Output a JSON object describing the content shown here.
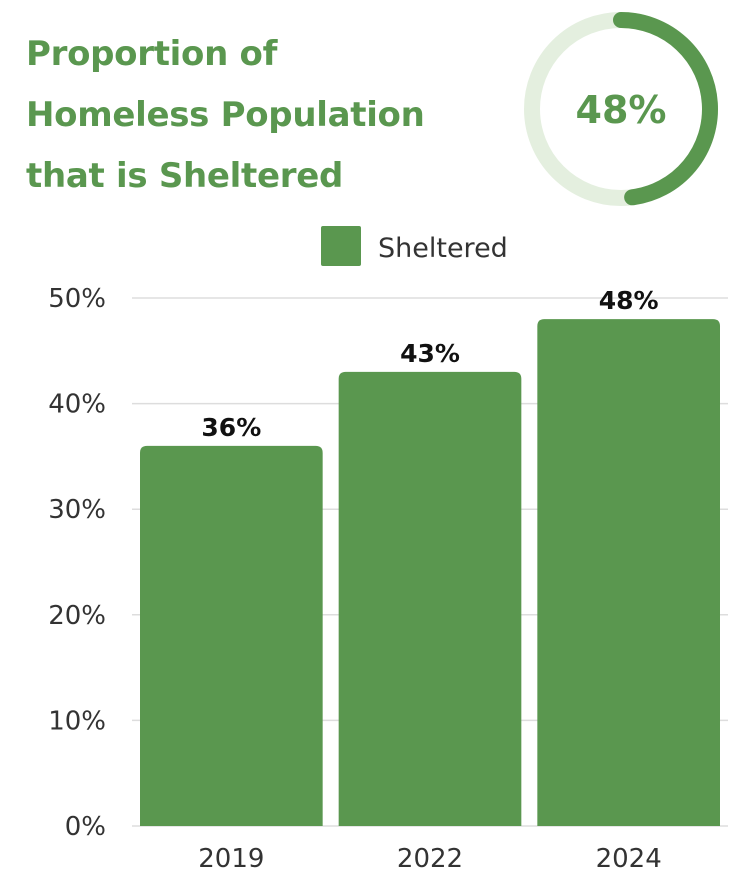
{
  "title_lines": [
    "Proportion of",
    "Homeless Population",
    "that is Sheltered"
  ],
  "badge": {
    "label": "48%",
    "value": 0.48
  },
  "colors": {
    "bar": "#5a974f",
    "ring_track": "#e4efdf",
    "title": "#5a974f",
    "grid": "#dddddd"
  },
  "chart_data": {
    "type": "bar",
    "categories": [
      "2019",
      "2022",
      "2024"
    ],
    "series": [
      {
        "name": "Sheltered",
        "values": [
          36,
          43,
          48
        ]
      }
    ],
    "data_labels": [
      "36%",
      "43%",
      "48%"
    ],
    "y_ticks": [
      "0%",
      "10%",
      "20%",
      "30%",
      "40%",
      "50%"
    ],
    "ylim": [
      0,
      50
    ],
    "grid": true,
    "legend_position": "top-center"
  }
}
